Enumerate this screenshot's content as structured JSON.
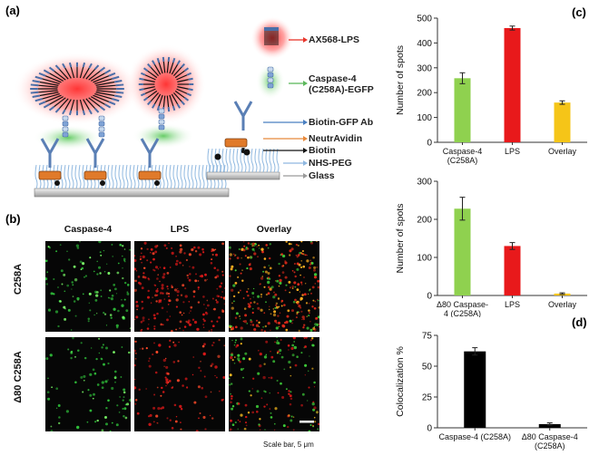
{
  "panels": {
    "a": "(a)",
    "b": "(b)",
    "c": "(c)",
    "d": "(d)"
  },
  "legend": [
    {
      "key": "ax568",
      "label": "AX568-LPS",
      "color": "#e8352b"
    },
    {
      "key": "casp",
      "label": "Caspase-4\n(C258A)-EGFP",
      "color": "#5cb85c"
    },
    {
      "key": "biotin_gfp",
      "label": "Biotin-GFP Ab",
      "color": "#4a7fc1"
    },
    {
      "key": "neutravidin",
      "label": "NeutrAvidin",
      "color": "#e8893a"
    },
    {
      "key": "biotin",
      "label": "Biotin",
      "color": "#111111"
    },
    {
      "key": "nhs",
      "label": "NHS-PEG",
      "color": "#8fb8e0"
    },
    {
      "key": "glass",
      "label": "Glass",
      "color": "#9a9a9a"
    }
  ],
  "micrographs": {
    "columns": [
      "Caspase-4",
      "LPS",
      "Overlay"
    ],
    "rows": [
      "C258A",
      "Δ80 C258A"
    ],
    "scale_bar": "Scale bar, 5 μm"
  },
  "chart_data": [
    {
      "type": "bar",
      "panel": "c-top",
      "categories": [
        "Caspase-4\n(C258A)",
        "LPS",
        "Overlay"
      ],
      "values": [
        258,
        460,
        160
      ],
      "errors": [
        22,
        8,
        7
      ],
      "colors": [
        "#8fd14f",
        "#e8191b",
        "#f5c518"
      ],
      "ylabel": "Number of spots",
      "ylim": [
        0,
        500
      ],
      "yticks": [
        0,
        100,
        200,
        300,
        400,
        500
      ]
    },
    {
      "type": "bar",
      "panel": "c-bottom",
      "categories": [
        "Δ80 Caspase-\n4 (C258A)",
        "LPS",
        "Overlay"
      ],
      "values": [
        228,
        130,
        5
      ],
      "errors": [
        30,
        9,
        2
      ],
      "colors": [
        "#8fd14f",
        "#e8191b",
        "#f5c518"
      ],
      "ylabel": "Number of spots",
      "ylim": [
        0,
        300
      ],
      "yticks": [
        0,
        100,
        200,
        300
      ]
    },
    {
      "type": "bar",
      "panel": "d",
      "categories": [
        "Caspase-4 (C258A)",
        "Δ80 Caspase-4\n(C258A)"
      ],
      "values": [
        62,
        3
      ],
      "errors": [
        3,
        1
      ],
      "colors": [
        "#000000",
        "#000000"
      ],
      "ylabel": "Colocalization %",
      "ylim": [
        0,
        75
      ],
      "yticks": [
        0,
        25,
        50,
        75
      ]
    }
  ]
}
